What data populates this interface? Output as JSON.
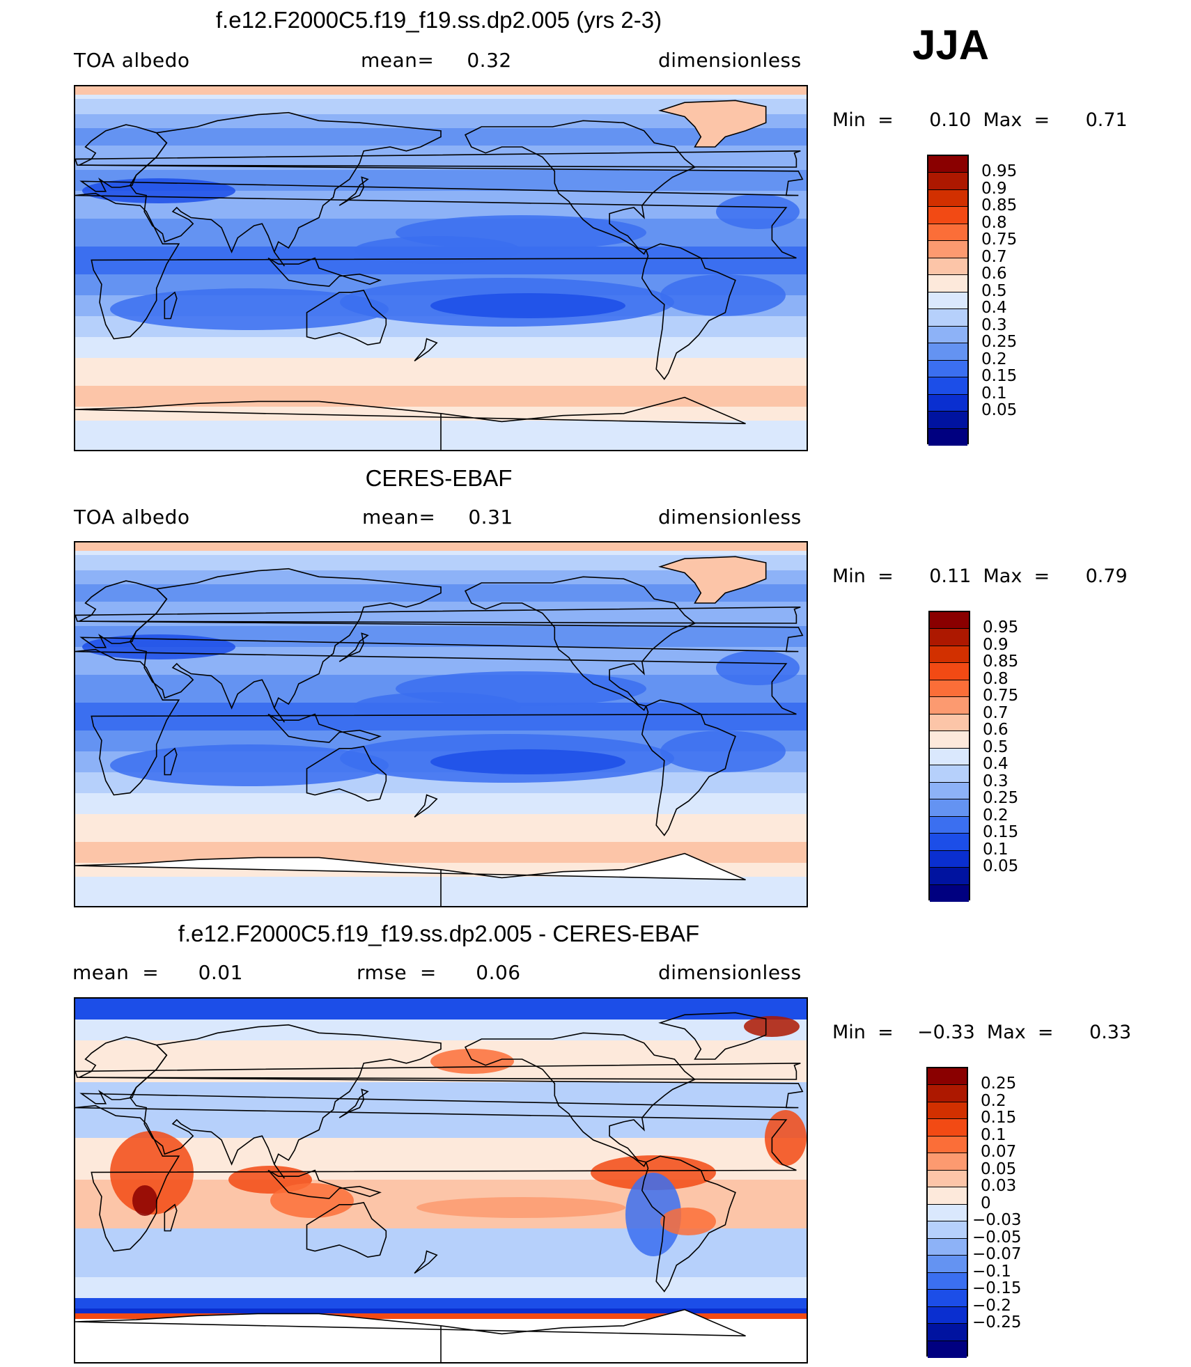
{
  "season": "JJA",
  "panels": [
    {
      "title": "f.e12.F2000C5.f19_f19.ss.dp2.005 (yrs 2-3)",
      "left": "TOA  albedo",
      "center": "mean=     0.32",
      "right": "dimensionless",
      "stats": "Min  =      0.10  Max  =      0.71",
      "scheme": "abs",
      "bg": "#c2d9fb"
    },
    {
      "title": "CERES-EBAF",
      "left": "TOA  albedo",
      "center": "mean=     0.31",
      "right": "dimensionless",
      "stats": "Min  =      0.11  Max  =      0.79",
      "scheme": "abs",
      "bg": "#88aef8"
    },
    {
      "title": "f.e12.F2000C5.f19_f19.ss.dp2.005 - CERES-EBAF",
      "left": "mean  =      0.01",
      "center": "rmse  =      0.06",
      "right": "dimensionless",
      "stats": "Min  =    −0.33  Max  =      0.33",
      "scheme": "diff",
      "bg": "#fde3d6"
    }
  ],
  "colorbars": {
    "abs": {
      "colors": [
        "#8a0000",
        "#ad1800",
        "#d23000",
        "#f24a14",
        "#fb6e38",
        "#fc9a70",
        "#fcc5a8",
        "#fde9db",
        "#dae8fd",
        "#b6d0fb",
        "#8db2f7",
        "#6493f2",
        "#3b6ff0",
        "#1c4ee8",
        "#0a2fd0",
        "#0013a0",
        "#000080"
      ],
      "labels": [
        "0.95",
        "0.9",
        "0.85",
        "0.8",
        "0.75",
        "0.7",
        "0.6",
        "0.5",
        "0.4",
        "0.3",
        "0.25",
        "0.2",
        "0.15",
        "0.1",
        "0.05"
      ]
    },
    "diff": {
      "colors": [
        "#8a0000",
        "#ad1800",
        "#d23000",
        "#f24a14",
        "#fb6e38",
        "#fc9a70",
        "#fcc5a8",
        "#fde9db",
        "#dae8fd",
        "#b6d0fb",
        "#8db2f7",
        "#6493f2",
        "#3b6ff0",
        "#1c4ee8",
        "#0a2fd0",
        "#0013a0",
        "#000080"
      ],
      "labels": [
        "0.25",
        "0.2",
        "0.15",
        "0.1",
        "0.07",
        "0.05",
        "0.03",
        "0",
        "−0.03",
        "−0.05",
        "−0.07",
        "−0.1",
        "−0.15",
        "−0.2",
        "−0.25"
      ]
    }
  }
}
